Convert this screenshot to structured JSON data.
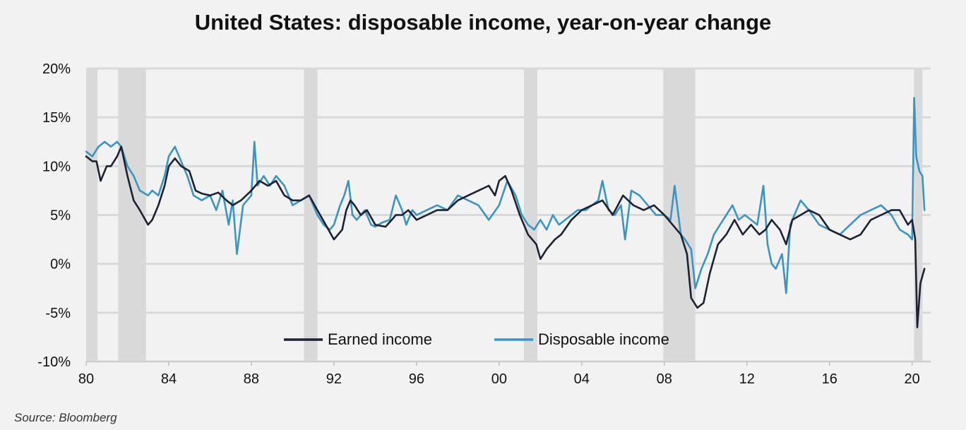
{
  "chart_data": {
    "type": "line",
    "title": "United States: disposable income, year-on-year change",
    "source": "Source: Bloomberg",
    "x_unit": "year",
    "xlim": [
      1980,
      2020.9
    ],
    "ylim": [
      -10,
      20
    ],
    "y_ticks": [
      20,
      15,
      10,
      5,
      0,
      -5,
      -10
    ],
    "y_tick_labels": [
      "20%",
      "15%",
      "10%",
      "5%",
      "0%",
      "-5%",
      "-10%"
    ],
    "x_ticks": [
      1980,
      1984,
      1988,
      1992,
      1996,
      2000,
      2004,
      2008,
      2012,
      2016,
      2020
    ],
    "x_tick_labels": [
      "80",
      "84",
      "88",
      "92",
      "96",
      "00",
      "04",
      "08",
      "12",
      "16",
      "20"
    ],
    "grid": "horizontal",
    "legend_position": "bottom-center",
    "recession_shading": [
      [
        1980.0,
        1980.55
      ],
      [
        1981.55,
        1982.9
      ],
      [
        1990.55,
        1991.2
      ],
      [
        2001.2,
        2001.85
      ],
      [
        2007.95,
        2009.5
      ],
      [
        2020.1,
        2020.5
      ]
    ],
    "colors": {
      "earned": "#1c2233",
      "disposable": "#3a95c3",
      "recession": "#d9d9d9",
      "grid": "#d9d9d9",
      "background": "#f2f2f2"
    },
    "series": [
      {
        "name": "Earned income",
        "color": "#1c2233",
        "x": [
          1980.0,
          1980.3,
          1980.5,
          1980.7,
          1981.0,
          1981.2,
          1981.5,
          1981.7,
          1982.0,
          1982.3,
          1982.6,
          1983.0,
          1983.2,
          1983.5,
          1983.8,
          1984.0,
          1984.3,
          1984.6,
          1985.0,
          1985.3,
          1985.6,
          1986.0,
          1986.4,
          1986.8,
          1987.1,
          1987.5,
          1988.0,
          1988.4,
          1988.8,
          1989.2,
          1989.6,
          1990.0,
          1990.4,
          1990.8,
          1991.2,
          1991.6,
          1992.0,
          1992.4,
          1992.6,
          1992.8,
          1993.0,
          1993.3,
          1993.6,
          1994.0,
          1994.5,
          1994.8,
          1995.0,
          1995.3,
          1995.6,
          1996.0,
          1996.5,
          1997.0,
          1997.5,
          1998.0,
          1998.5,
          1999.0,
          1999.5,
          1999.8,
          2000.0,
          2000.3,
          2000.6,
          2001.0,
          2001.4,
          2001.8,
          2002.0,
          2002.3,
          2002.7,
          2003.0,
          2003.5,
          2004.0,
          2004.5,
          2005.0,
          2005.5,
          2006.0,
          2006.5,
          2007.0,
          2007.5,
          2008.0,
          2008.4,
          2008.8,
          2009.1,
          2009.3,
          2009.6,
          2009.9,
          2010.2,
          2010.6,
          2011.0,
          2011.4,
          2011.8,
          2012.2,
          2012.6,
          2012.9,
          2013.2,
          2013.6,
          2013.9,
          2014.2,
          2014.6,
          2015.0,
          2015.5,
          2016.0,
          2016.5,
          2017.0,
          2017.5,
          2018.0,
          2018.5,
          2019.0,
          2019.4,
          2019.8,
          2020.0,
          2020.15,
          2020.25,
          2020.4,
          2020.6
        ],
        "y": [
          11.0,
          10.5,
          10.5,
          8.5,
          10.0,
          10.0,
          11.0,
          12.0,
          9.0,
          6.5,
          5.5,
          4.0,
          4.5,
          6.0,
          8.0,
          10.0,
          10.8,
          10.0,
          9.5,
          7.5,
          7.2,
          7.0,
          7.3,
          6.5,
          6.0,
          6.5,
          7.5,
          8.5,
          8.0,
          8.5,
          7.0,
          6.5,
          6.5,
          7.0,
          5.5,
          4.0,
          2.5,
          3.5,
          5.5,
          6.5,
          6.0,
          5.0,
          5.5,
          4.0,
          3.8,
          4.5,
          5.0,
          5.0,
          5.5,
          4.5,
          5.0,
          5.5,
          5.5,
          6.5,
          7.0,
          7.5,
          8.0,
          7.0,
          8.5,
          9.0,
          7.5,
          5.0,
          3.0,
          2.0,
          0.5,
          1.5,
          2.5,
          3.0,
          4.5,
          5.5,
          6.0,
          6.5,
          5.0,
          7.0,
          6.0,
          5.5,
          6.0,
          5.0,
          4.0,
          3.0,
          1.0,
          -3.5,
          -4.5,
          -4.0,
          -1.0,
          2.0,
          3.0,
          4.5,
          3.0,
          4.0,
          3.0,
          3.5,
          4.5,
          3.5,
          2.0,
          4.5,
          5.0,
          5.5,
          5.0,
          3.5,
          3.0,
          2.5,
          3.0,
          4.5,
          5.0,
          5.5,
          5.5,
          4.0,
          4.5,
          2.5,
          -6.5,
          -2.0,
          -0.5
        ]
      },
      {
        "name": "Disposable income",
        "color": "#3a95c3",
        "x": [
          1980.0,
          1980.3,
          1980.6,
          1980.9,
          1981.2,
          1981.5,
          1981.7,
          1982.0,
          1982.3,
          1982.6,
          1983.0,
          1983.2,
          1983.5,
          1983.8,
          1984.0,
          1984.3,
          1984.6,
          1984.9,
          1985.2,
          1985.6,
          1986.0,
          1986.3,
          1986.6,
          1986.9,
          1987.1,
          1987.3,
          1987.6,
          1988.0,
          1988.15,
          1988.3,
          1988.6,
          1988.9,
          1989.2,
          1989.6,
          1990.0,
          1990.4,
          1990.8,
          1991.2,
          1991.5,
          1991.8,
          1992.0,
          1992.3,
          1992.5,
          1992.7,
          1992.9,
          1993.1,
          1993.5,
          1993.8,
          1994.0,
          1994.3,
          1994.7,
          1995.0,
          1995.3,
          1995.5,
          1995.8,
          1996.0,
          1996.5,
          1997.0,
          1997.5,
          1998.0,
          1998.5,
          1999.0,
          1999.5,
          2000.0,
          2000.4,
          2000.8,
          2001.1,
          2001.4,
          2001.7,
          2002.0,
          2002.3,
          2002.6,
          2002.9,
          2003.2,
          2003.5,
          2003.8,
          2004.2,
          2004.5,
          2004.8,
          2005.0,
          2005.3,
          2005.6,
          2005.9,
          2006.1,
          2006.4,
          2006.8,
          2007.2,
          2007.6,
          2008.0,
          2008.3,
          2008.5,
          2008.8,
          2009.0,
          2009.3,
          2009.5,
          2009.8,
          2010.1,
          2010.4,
          2010.7,
          2011.0,
          2011.3,
          2011.6,
          2011.9,
          2012.2,
          2012.5,
          2012.8,
          2013.0,
          2013.2,
          2013.4,
          2013.7,
          2013.9,
          2014.1,
          2014.3,
          2014.6,
          2015.0,
          2015.5,
          2016.0,
          2016.5,
          2017.0,
          2017.5,
          2018.0,
          2018.5,
          2019.0,
          2019.4,
          2019.8,
          2020.0,
          2020.1,
          2020.2,
          2020.35,
          2020.5,
          2020.6
        ],
        "y": [
          11.5,
          11.0,
          12.0,
          12.5,
          12.0,
          12.5,
          12.0,
          10.0,
          9.0,
          7.5,
          7.0,
          7.5,
          7.0,
          9.0,
          11.0,
          12.0,
          10.5,
          9.0,
          7.0,
          6.5,
          7.0,
          5.5,
          7.5,
          4.0,
          6.5,
          1.0,
          6.0,
          7.0,
          12.5,
          8.0,
          9.0,
          8.0,
          9.0,
          8.0,
          6.0,
          6.5,
          7.0,
          5.0,
          4.0,
          3.5,
          4.0,
          6.0,
          7.0,
          8.5,
          5.0,
          4.5,
          5.5,
          4.0,
          3.8,
          4.2,
          4.5,
          7.0,
          5.5,
          4.0,
          5.5,
          5.0,
          5.5,
          6.0,
          5.5,
          7.0,
          6.5,
          6.0,
          4.5,
          6.0,
          8.5,
          7.0,
          5.0,
          4.0,
          3.5,
          4.5,
          3.5,
          5.0,
          4.0,
          4.5,
          5.0,
          5.5,
          5.5,
          6.0,
          6.5,
          8.5,
          5.5,
          5.0,
          6.0,
          2.5,
          7.5,
          7.0,
          6.0,
          5.0,
          5.0,
          4.5,
          8.0,
          3.0,
          2.5,
          1.5,
          -2.5,
          -0.5,
          1.0,
          3.0,
          4.0,
          5.0,
          6.0,
          4.5,
          5.0,
          4.5,
          4.0,
          8.0,
          2.0,
          0.0,
          -0.5,
          1.0,
          -3.0,
          4.0,
          5.0,
          6.5,
          5.5,
          4.0,
          3.5,
          3.0,
          4.0,
          5.0,
          5.5,
          6.0,
          5.0,
          3.5,
          3.0,
          2.5,
          17.0,
          11.0,
          9.5,
          9.0,
          5.5
        ]
      }
    ]
  }
}
